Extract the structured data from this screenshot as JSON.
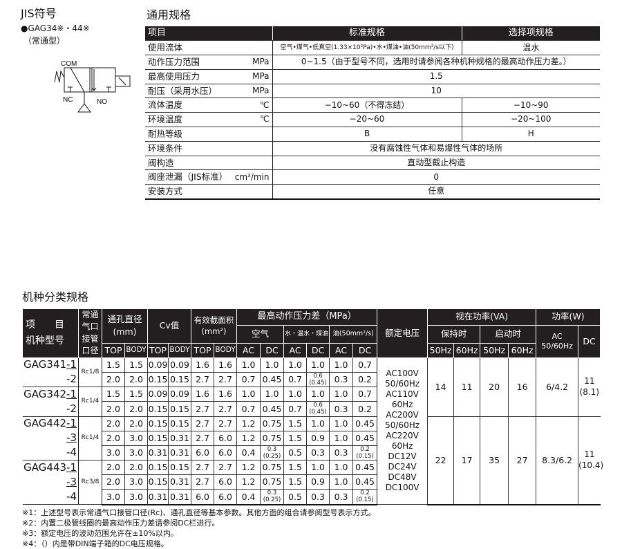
{
  "jis": {
    "title": "JIS符号",
    "model": "●GAG34※・44※",
    "type": "（常通型）",
    "symbol_labels": {
      "com": "COM",
      "nc": "NC",
      "no": "NO"
    }
  },
  "spec": {
    "title": "通用规格",
    "headers": [
      "项目",
      "标准规格",
      "选择项规格"
    ],
    "rows": [
      {
        "label": "使用流体",
        "unit": "",
        "std": "空气•煤气•低真空(1.33×10²Pa)•水•煤油•油(50mm²/s以下)",
        "opt": "温水"
      },
      {
        "label": "动作压力范围",
        "unit": "MPa",
        "value": "0~1.5（由于型号不同，选用时请参阅各种机种规格的最高动作压力差。）"
      },
      {
        "label": "最高使用压力",
        "unit": "MPa",
        "value": "1.5"
      },
      {
        "label": "耐压（采用水压）",
        "unit": "MPa",
        "value": "10"
      },
      {
        "label": "流体温度",
        "unit": "℃",
        "std": "−10~60（不得冻结）",
        "opt": "−10~90"
      },
      {
        "label": "环境温度",
        "unit": "℃",
        "std": "−20~60",
        "opt": "−20~100"
      },
      {
        "label": "耐热等级",
        "unit": "",
        "std": "B",
        "opt": "H"
      },
      {
        "label": "环境条件",
        "unit": "",
        "value": "没有腐蚀性气体和易爆性气体的场所"
      },
      {
        "label": "阀构造",
        "unit": "",
        "value": "直动型截止构造"
      },
      {
        "label": "阀座泄漏（JIS标准）",
        "unit": "cm³/min",
        "value": "0"
      },
      {
        "label": "安装方式",
        "unit": "",
        "value": "任意"
      }
    ]
  },
  "classification": {
    "title": "机种分类规格",
    "headers": {
      "item": "项　　目",
      "model": "机种型号",
      "port": "常通\n气口\n接管\n口径",
      "orifice": "通孔直径\n(mm)",
      "cv": "Cv值",
      "area": "有效截面积\n(mm²)",
      "max_dp": "最高动作压力差（MPa）",
      "air": "空气",
      "water": "水・温水・煤油",
      "oil": "油(50mm²/s)",
      "top": "TOP",
      "body": "BODY",
      "ac": "AC",
      "dc": "DC",
      "voltage": "额定电压",
      "apparent_power": "视在功率(VA)",
      "holding": "保持时",
      "starting": "启动时",
      "hz50": "50Hz",
      "hz60": "60Hz",
      "power": "功率(W)",
      "power_ac": "AC\n50/60Hz",
      "power_dc": "DC"
    },
    "groups": [
      {
        "port": "Rc1/8",
        "rows": [
          {
            "model": "GAG341",
            "suffix": "-1",
            "values": [
              "1.5",
              "1.5",
              "0.09",
              "0.09",
              "1.6",
              "1.6",
              "1.0",
              "1.0",
              "1.0",
              "1.0",
              "1.0",
              "0.7"
            ]
          },
          {
            "model": "",
            "suffix": "-2",
            "values": [
              "2.0",
              "2.0",
              "0.15",
              "0.15",
              "2.7",
              "2.7",
              "0.7",
              "0.45",
              "0.7",
              "0.6\n(0.45)",
              "0.3",
              "0.2"
            ]
          }
        ]
      },
      {
        "port": "Rc1/4",
        "rows": [
          {
            "model": "GAG342",
            "suffix": "-1",
            "values": [
              "1.5",
              "1.5",
              "0.09",
              "0.09",
              "1.6",
              "1.6",
              "1.0",
              "1.0",
              "1.0",
              "1.0",
              "1.0",
              "0.7"
            ]
          },
          {
            "model": "",
            "suffix": "-2",
            "values": [
              "2.0",
              "2.0",
              "0.15",
              "0.15",
              "2.7",
              "2.7",
              "0.7",
              "0.45",
              "0.7",
              "0.6\n(0.45)",
              "0.3",
              "0.2"
            ]
          }
        ]
      },
      {
        "port": "Rc1/4",
        "rows": [
          {
            "model": "GAG442",
            "suffix": "-1",
            "values": [
              "2.0",
              "2.0",
              "0.15",
              "0.15",
              "2.7",
              "2.7",
              "1.2",
              "0.75",
              "1.5",
              "1.0",
              "1.0",
              "0.45"
            ]
          },
          {
            "model": "",
            "suffix": "-3",
            "values": [
              "2.0",
              "3.0",
              "0.15",
              "0.31",
              "2.7",
              "6.0",
              "1.2",
              "0.75",
              "1.5",
              "0.9",
              "1.0",
              "0.45"
            ]
          },
          {
            "model": "",
            "suffix": "-4",
            "values": [
              "3.0",
              "3.0",
              "0.31",
              "0.31",
              "6.0",
              "6.0",
              "0.4",
              "0.3\n(0.25)",
              "0.5",
              "0.3",
              "0.3",
              "0.2\n(0.15)"
            ]
          }
        ]
      },
      {
        "port": "Rc3/8",
        "rows": [
          {
            "model": "GAG443",
            "suffix": "-1",
            "values": [
              "2.0",
              "2.0",
              "0.15",
              "0.15",
              "2.7",
              "2.7",
              "1.2",
              "0.75",
              "1.5",
              "1.0",
              "1.0",
              "0.45"
            ]
          },
          {
            "model": "",
            "suffix": "-3",
            "values": [
              "2.0",
              "3.0",
              "0.15",
              "0.31",
              "2.7",
              "6.0",
              "1.2",
              "0.75",
              "1.5",
              "0.9",
              "1.0",
              "0.45"
            ]
          },
          {
            "model": "",
            "suffix": "-4",
            "values": [
              "3.0",
              "3.0",
              "0.31",
              "0.31",
              "6.0",
              "6.0",
              "0.4",
              "0.3\n(0.25)",
              "0.5",
              "0.3",
              "0.3",
              "0.2\n(0.15)"
            ]
          }
        ]
      }
    ],
    "voltage": "AC100V\n50/60Hz\nAC110V\n60Hz\nAC200V\n50/60Hz\nAC220V\n60Hz\nDC12V\nDC24V\nDC48V\nDC100V",
    "power_blocks": [
      {
        "values": [
          "14",
          "11",
          "20",
          "16",
          "6/4.2",
          "11\n(8.1)"
        ]
      },
      {
        "values": [
          "22",
          "17",
          "35",
          "27",
          "8.3/6.2",
          "11\n(10.4)"
        ]
      }
    ]
  },
  "notes": [
    "※1：上述型号表示常通气口接管口径(Rc)、通孔直径等基本参数。其他方面的组合请参阅型号表示方式。",
    "※2：内置二极管线圈的最高动作压力差请参阅DC栏进行。",
    "※3：额定电压的波动范围允许在±10%以内。",
    "※4：（）内是带DIN端子箱的DC电压规格。"
  ]
}
